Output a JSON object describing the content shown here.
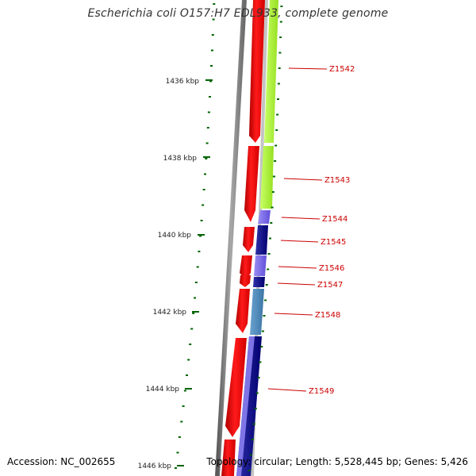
{
  "title": "Escherichia coli O157:H7 EDL933, complete genome",
  "accession_text": "Accession: NC_002655",
  "topology_text": "Topology: circular; Length: 5,528,445 bp; Genes: 5,426",
  "colors": {
    "forward_cds": "#ff0000",
    "reverse_cds_lime": "#adff2f",
    "reverse_cds_slateblue": "#7b68ee",
    "reverse_cds_navy": "#000080",
    "reverse_cds_steelblue": "#4682b4",
    "backbone": "#808080",
    "tick": "#006400",
    "gene_label": "#cc0000"
  },
  "ruler": {
    "major_labels": [
      "1436 kbp",
      "1438 kbp",
      "1440 kbp",
      "1442 kbp",
      "1444 kbp",
      "1446 kbp"
    ]
  },
  "genes": [
    {
      "label": "Z1542",
      "color_key": "reverse_cds_lime"
    },
    {
      "label": "Z1543",
      "color_key": "reverse_cds_lime"
    },
    {
      "label": "Z1544",
      "color_key": "reverse_cds_slateblue"
    },
    {
      "label": "Z1545",
      "color_key": "reverse_cds_navy"
    },
    {
      "label": "Z1546",
      "color_key": "reverse_cds_slateblue"
    },
    {
      "label": "Z1547",
      "color_key": "reverse_cds_navy"
    },
    {
      "label": "Z1548",
      "color_key": "reverse_cds_steelblue"
    },
    {
      "label": "Z1549",
      "color_key": "reverse_cds_navy"
    }
  ]
}
